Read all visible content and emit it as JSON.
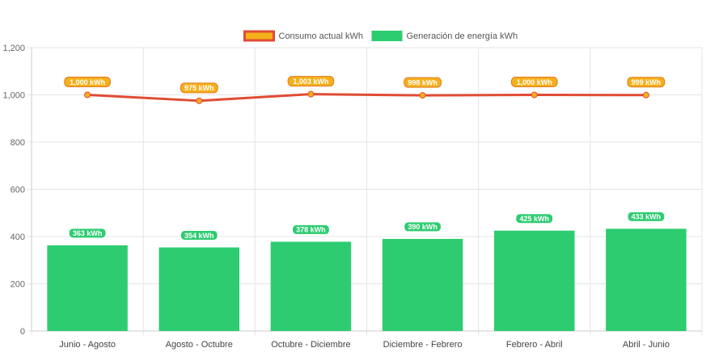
{
  "chart_data": {
    "type": "bar",
    "categories": [
      "Junio - Agosto",
      "Agosto - Octubre",
      "Octubre - Diciembre",
      "Diciembre - Febrero",
      "Febrero - Abril",
      "Abril - Junio"
    ],
    "series": [
      {
        "name": "Consumo actual kWh",
        "type": "line",
        "values": [
          1000,
          975,
          1003,
          998,
          1000,
          999
        ],
        "labels": [
          "1,000 kWh",
          "975 kWh",
          "1,003 kWh",
          "998 kWh",
          "1,000 kWh",
          "999 kWh"
        ],
        "color": "#e04b35",
        "point_color": "#f5b01a"
      },
      {
        "name": "Generación de energía kWh",
        "type": "bar",
        "values": [
          363,
          354,
          378,
          390,
          425,
          433
        ],
        "labels": [
          "363 kWh",
          "354 kWh",
          "378 kWh",
          "390 kWh",
          "425 kWh",
          "433 kWh"
        ],
        "color": "#2ecc71"
      }
    ],
    "ylim": [
      0,
      1200
    ],
    "yticks": [
      0,
      200,
      400,
      600,
      800,
      1000,
      1200
    ],
    "ytick_labels": [
      "0",
      "200",
      "400",
      "600",
      "800",
      "1,000",
      "1,200"
    ],
    "grid": true,
    "legend": "top-center",
    "title": "",
    "xlabel": "",
    "ylabel": ""
  }
}
